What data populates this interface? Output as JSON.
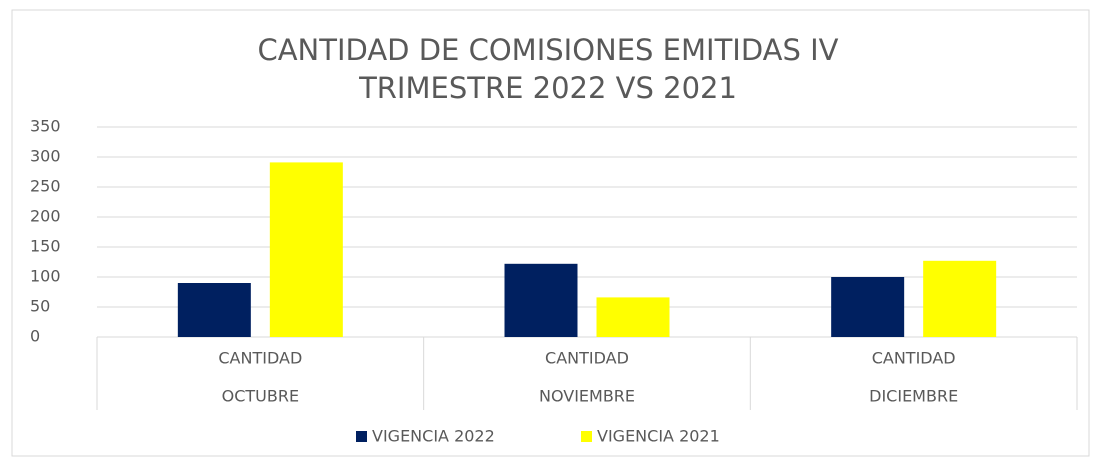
{
  "chart_data": {
    "type": "bar",
    "title": "CANTIDAD DE COMISIONES EMITIDAS IV TRIMESTRE 2022 VS 2021",
    "categories": [
      "OCTUBRE",
      "NOVIEMBRE",
      "DICIEMBRE"
    ],
    "subcategories": [
      "CANTIDAD",
      "CANTIDAD",
      "CANTIDAD"
    ],
    "series": [
      {
        "name": "VIGENCIA 2022",
        "color": "#002060",
        "values": [
          90,
          122,
          100
        ]
      },
      {
        "name": "VIGENCIA 2021",
        "color": "#ffff00",
        "values": [
          291,
          66,
          127
        ]
      }
    ],
    "ylim": [
      0,
      350
    ],
    "yticks": [
      0,
      50,
      100,
      150,
      200,
      250,
      300,
      350
    ],
    "grid": true,
    "legend": "bottom"
  }
}
